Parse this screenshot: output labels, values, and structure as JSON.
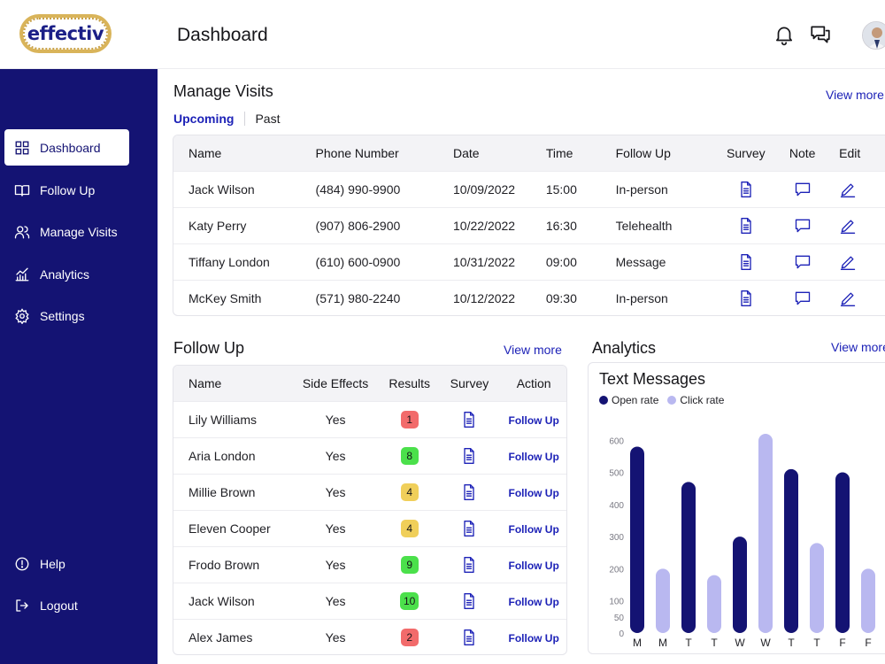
{
  "app": {
    "logo_text": "effectiv",
    "page_title": "Dashboard"
  },
  "header": {
    "icons": [
      "bell-icon",
      "chat-icon"
    ]
  },
  "sidebar": {
    "items": [
      {
        "label": "Dashboard",
        "icon": "grid-icon",
        "active": true
      },
      {
        "label": "Follow Up",
        "icon": "book-icon"
      },
      {
        "label": "Manage Visits",
        "icon": "users-icon"
      },
      {
        "label": "Analytics",
        "icon": "analytics-icon"
      },
      {
        "label": "Settings",
        "icon": "gear-icon"
      }
    ],
    "bottom": [
      {
        "label": "Help",
        "icon": "help-icon"
      },
      {
        "label": "Logout",
        "icon": "logout-icon"
      }
    ]
  },
  "manage_visits": {
    "title": "Manage Visits",
    "view_more": "View more",
    "tabs": [
      {
        "label": "Upcoming",
        "active": true
      },
      {
        "label": "Past"
      }
    ],
    "columns": [
      "Name",
      "Phone Number",
      "Date",
      "Time",
      "Follow Up",
      "Survey",
      "Note",
      "Edit"
    ],
    "rows": [
      {
        "name": "Jack Wilson",
        "phone": "(484) 990-9900",
        "date": "10/09/2022",
        "time": "15:00",
        "follow_up": "In-person"
      },
      {
        "name": "Katy Perry",
        "phone": "(907) 806-2900",
        "date": "10/22/2022",
        "time": "16:30",
        "follow_up": "Telehealth"
      },
      {
        "name": "Tiffany London",
        "phone": "(610) 600-0900",
        "date": "10/31/2022",
        "time": "09:00",
        "follow_up": "Message"
      },
      {
        "name": "McKey Smith",
        "phone": "(571) 980-2240",
        "date": "10/12/2022",
        "time": "09:30",
        "follow_up": "In-person"
      }
    ]
  },
  "follow_up": {
    "title": "Follow Up",
    "view_more": "View more",
    "columns": [
      "Name",
      "Side Effects",
      "Results",
      "Survey",
      "Action"
    ],
    "rows": [
      {
        "name": "Lily Williams",
        "side_effects": "Yes",
        "result": "1",
        "result_color": "#f26b6b",
        "action": "Follow Up"
      },
      {
        "name": "Aria London",
        "side_effects": "Yes",
        "result": "8",
        "result_color": "#4be04b",
        "action": "Follow Up"
      },
      {
        "name": "Millie Brown",
        "side_effects": "Yes",
        "result": "4",
        "result_color": "#f0cf5a",
        "action": "Follow Up"
      },
      {
        "name": "Eleven Cooper",
        "side_effects": "Yes",
        "result": "4",
        "result_color": "#f0cf5a",
        "action": "Follow Up"
      },
      {
        "name": "Frodo Brown",
        "side_effects": "Yes",
        "result": "9",
        "result_color": "#4be04b",
        "action": "Follow Up"
      },
      {
        "name": "Jack Wilson",
        "side_effects": "Yes",
        "result": "10",
        "result_color": "#4be04b",
        "action": "Follow Up"
      },
      {
        "name": "Alex James",
        "side_effects": "Yes",
        "result": "2",
        "result_color": "#f26b6b",
        "action": "Follow Up"
      }
    ]
  },
  "analytics": {
    "title": "Analytics",
    "view_more": "View more"
  },
  "colors": {
    "sidebar": "#141373",
    "accent": "#1d22b7",
    "open_rate": "#141373",
    "click_rate": "#b9b8f0"
  },
  "chart_data": {
    "type": "bar",
    "title": "Text Messages",
    "categories": [
      "M",
      "M",
      "T",
      "T",
      "W",
      "W",
      "T",
      "T",
      "F",
      "F"
    ],
    "series": [
      {
        "name": "Open rate",
        "values": [
          580,
          null,
          470,
          null,
          300,
          null,
          510,
          null,
          500,
          null
        ]
      },
      {
        "name": "Click rate",
        "values": [
          null,
          200,
          null,
          180,
          null,
          620,
          null,
          280,
          null,
          200
        ]
      }
    ],
    "yticks": [
      0,
      50,
      100,
      200,
      300,
      400,
      500,
      600
    ],
    "ylim": [
      0,
      620
    ],
    "legend": "top-left",
    "grid": false
  }
}
